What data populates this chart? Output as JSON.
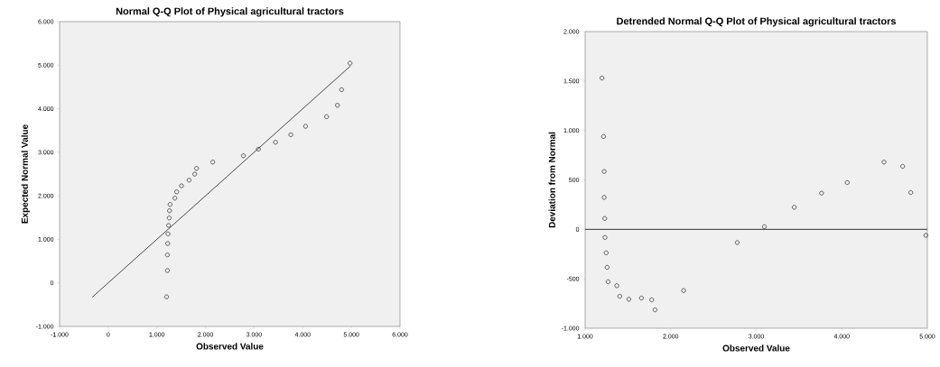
{
  "chart_data": [
    {
      "type": "scatter",
      "title": "Normal Q-Q Plot of Physical agricultural tractors",
      "xlabel": "Observed Value",
      "ylabel": "Expected Normal Value",
      "grid": false,
      "xlim": [
        -1000,
        6000
      ],
      "ylim": [
        -1000,
        6000
      ],
      "xticks": [
        {
          "value": -1000,
          "label": "-1.000"
        },
        0,
        {
          "value": 1000,
          "label": "1.000"
        },
        {
          "value": 2000,
          "label": "2.000"
        },
        {
          "value": 3000,
          "label": "3.000"
        },
        {
          "value": 4000,
          "label": "4.000"
        },
        {
          "value": 5000,
          "label": "5.000"
        },
        {
          "value": 6000,
          "label": "6.000"
        }
      ],
      "yticks": [
        {
          "value": -1000,
          "label": "-1.000"
        },
        0,
        {
          "value": 1000,
          "label": "1.000"
        },
        {
          "value": 2000,
          "label": "2.000"
        },
        {
          "value": 3000,
          "label": "3.000"
        },
        {
          "value": 4000,
          "label": "4.000"
        },
        {
          "value": 5000,
          "label": "5.000"
        },
        {
          "value": 6000,
          "label": "6.000"
        }
      ],
      "series": [
        {
          "marker": "circle",
          "color": "#000000",
          "x": [
            1200,
            1217,
            1217,
            1223,
            1229,
            1241,
            1254,
            1260,
            1272,
            1371,
            1408,
            1507,
            1662,
            1779,
            1816,
            2149,
            2779,
            3088,
            3440,
            3755,
            4058,
            4490,
            4713,
            4799,
            4972
          ],
          "values": [
            -320,
            283,
            642,
            904,
            1125,
            1318,
            1491,
            1656,
            1801,
            1946,
            2091,
            2229,
            2360,
            2498,
            2629,
            2774,
            2919,
            3071,
            3230,
            3402,
            3596,
            3816,
            4079,
            4437,
            5045
          ]
        },
        {
          "type": "line",
          "marker": "none",
          "color": "#000000",
          "x": [
            -330,
            4980
          ],
          "values": [
            -330,
            4980
          ]
        }
      ]
    },
    {
      "type": "scatter",
      "title": "Detrended Normal Q-Q Plot of Physical agricultural tractors",
      "xlabel": "Observed Value",
      "ylabel": "Deviation from Normal",
      "grid": false,
      "marker": "circle",
      "xlim": [
        1000,
        5000
      ],
      "ylim": [
        -1000,
        2000
      ],
      "xticks": [
        {
          "value": 1000,
          "label": "1.000"
        },
        {
          "value": 2000,
          "label": "2.000"
        },
        {
          "value": 3000,
          "label": "3.000"
        },
        {
          "value": 4000,
          "label": "4.000"
        },
        {
          "value": 5000,
          "label": "5.000"
        }
      ],
      "yticks": [
        {
          "value": -1000,
          "label": "-1.000"
        },
        -500,
        0,
        500,
        {
          "value": 1000,
          "label": "1.000"
        },
        {
          "value": 1500,
          "label": "1.500"
        },
        {
          "value": 2000,
          "label": "2.000"
        }
      ],
      "ref_lines": [
        {
          "axis": "y",
          "value": 0,
          "color": "#000000"
        }
      ],
      "series": [
        {
          "type": "scatter",
          "color": "#000000",
          "x": [
            1197,
            1215,
            1222,
            1222,
            1229,
            1232,
            1246,
            1257,
            1268,
            1370,
            1405,
            1511,
            1658,
            1778,
            1817,
            2151,
            2778,
            3095,
            3444,
            3764,
            4063,
            4493,
            4711,
            4806,
            4982
          ],
          "values": [
            1530,
            939,
            585,
            323,
            110,
            -82,
            -238,
            -384,
            -530,
            -570,
            -677,
            -707,
            -695,
            -713,
            -814,
            -619,
            -134,
            27,
            223,
            366,
            473,
            680,
            637,
            372,
            -61
          ]
        }
      ]
    }
  ]
}
